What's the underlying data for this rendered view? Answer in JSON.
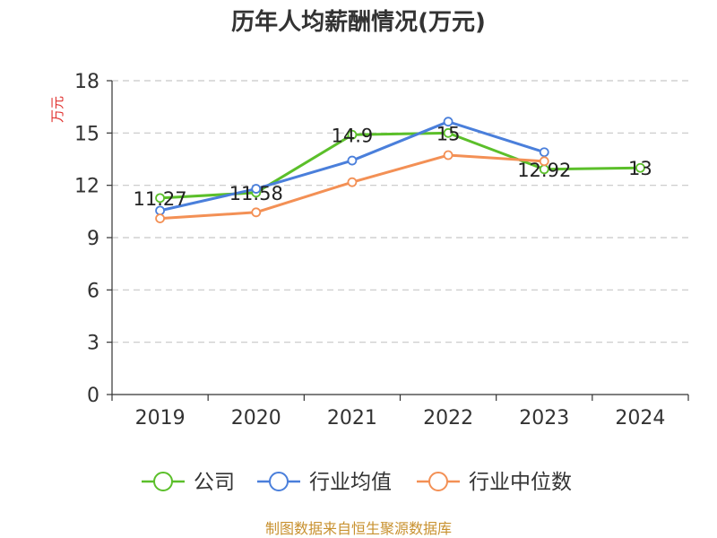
{
  "title": "历年人均薪酬情况(万元)",
  "source_text": "制图数据来自恒生聚源数据库",
  "colors": {
    "source_text": "#c8912f",
    "ylabel": "#e0312e",
    "grid": "#c8c8c8",
    "axis": "#333333"
  },
  "chart_data": {
    "type": "line",
    "title": "历年人均薪酬情况(万元)",
    "xlabel": "",
    "ylabel": "万元",
    "categories": [
      "2019",
      "2020",
      "2021",
      "2022",
      "2023",
      "2024"
    ],
    "ylim": [
      0,
      18
    ],
    "yticks": [
      0,
      3,
      6,
      9,
      12,
      15,
      18
    ],
    "grid": "horizontal dashed",
    "legend_position": "bottom",
    "series": [
      {
        "name": "公司",
        "color": "#5bbf2a",
        "values": [
          11.27,
          11.58,
          14.9,
          15,
          12.92,
          13
        ],
        "labels": [
          "11.27",
          "11.58",
          "14.9",
          "15",
          "12.92",
          "13"
        ]
      },
      {
        "name": "行业均值",
        "color": "#4a7fdb",
        "values": [
          10.55,
          11.8,
          13.42,
          15.65,
          13.9,
          null
        ]
      },
      {
        "name": "行业中位数",
        "color": "#f39055",
        "values": [
          10.1,
          10.45,
          12.18,
          13.73,
          13.38,
          null
        ]
      }
    ]
  }
}
